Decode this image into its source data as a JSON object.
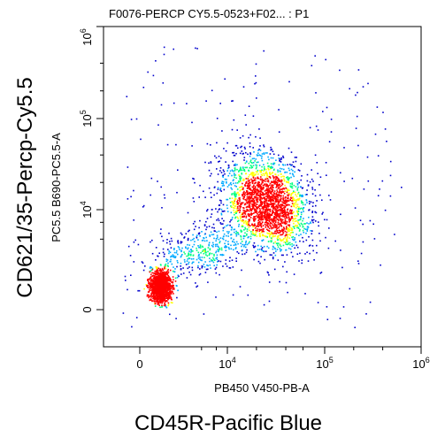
{
  "chart_data": {
    "type": "scatter",
    "title": "F0076-PERCP CY5.5-0523+F02... : P1",
    "xlabel": "PB450 V450-PB-A",
    "ylabel": "PC5.5 B690-PC5.5-A",
    "outer_xlabel": "CD45R-Pacific Blue",
    "outer_ylabel": "CD621/35-Percp-Cy5.5",
    "x_scale": "biexponential",
    "y_scale": "biexponential",
    "x_ticks": [
      {
        "value": 0,
        "label": "0"
      },
      {
        "value": 10000,
        "label": "10^4"
      },
      {
        "value": 100000,
        "label": "10^5"
      },
      {
        "value": 1000000,
        "label": "10^6"
      }
    ],
    "y_ticks": [
      {
        "value": 0,
        "label": "0"
      },
      {
        "value": 10000,
        "label": "10^4"
      },
      {
        "value": 100000,
        "label": "10^5"
      },
      {
        "value": 1000000,
        "label": "10^6"
      }
    ],
    "density_colormap": [
      "#0000cc",
      "#00aaff",
      "#00ff80",
      "#ffff00",
      "#ff0000"
    ],
    "populations": [
      {
        "name": "",
        "x_center": 300,
        "y_center": 300,
        "relative_size": 0.35
      },
      {
        "name": "",
        "x_center": 25000,
        "y_center": 12000,
        "relative_size": 0.55
      },
      {
        "name": "",
        "x_center": 3000,
        "y_center": 2000,
        "relative_size": 0.1
      }
    ],
    "grid": false,
    "legend": "none"
  }
}
